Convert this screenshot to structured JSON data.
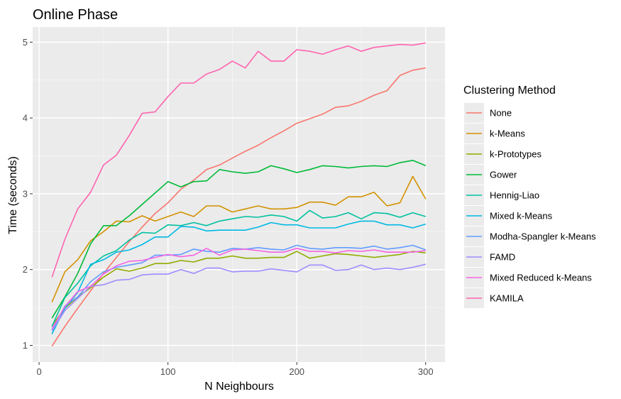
{
  "chart_data": {
    "type": "line",
    "title": "Online Phase",
    "xlabel": "N Neighbours",
    "ylabel": "Time (seconds)",
    "xlim": [
      -5,
      315
    ],
    "ylim": [
      0.78,
      5.2
    ],
    "xticks": [
      0,
      100,
      200,
      300
    ],
    "yticks": [
      1,
      2,
      3,
      4,
      5
    ],
    "grid": true,
    "legend": {
      "title": "Clustering Method",
      "position": "right"
    },
    "x": [
      10,
      20,
      30,
      40,
      50,
      60,
      70,
      80,
      90,
      100,
      110,
      120,
      130,
      140,
      150,
      160,
      170,
      180,
      190,
      200,
      210,
      220,
      230,
      240,
      250,
      260,
      270,
      280,
      290,
      300
    ],
    "series": [
      {
        "name": "None",
        "color": "#F8766D",
        "values": [
          0.99,
          1.25,
          1.49,
          1.72,
          1.95,
          2.16,
          2.37,
          2.56,
          2.74,
          2.88,
          3.06,
          3.18,
          3.32,
          3.38,
          3.47,
          3.56,
          3.64,
          3.74,
          3.83,
          3.93,
          3.99,
          4.05,
          4.14,
          4.16,
          4.22,
          4.3,
          4.36,
          4.56,
          4.63,
          4.66
        ]
      },
      {
        "name": "k-Means",
        "color": "#D39200",
        "values": [
          1.57,
          1.97,
          2.13,
          2.38,
          2.5,
          2.64,
          2.63,
          2.71,
          2.64,
          2.7,
          2.76,
          2.7,
          2.84,
          2.84,
          2.76,
          2.8,
          2.84,
          2.8,
          2.8,
          2.82,
          2.89,
          2.89,
          2.85,
          2.96,
          2.96,
          3.02,
          2.84,
          2.88,
          3.23,
          2.93
        ]
      },
      {
        "name": "k-Prototypes",
        "color": "#93AA00",
        "values": [
          1.26,
          1.49,
          1.64,
          1.76,
          1.9,
          2.01,
          1.98,
          2.02,
          2.08,
          2.08,
          2.12,
          2.1,
          2.15,
          2.15,
          2.18,
          2.15,
          2.15,
          2.16,
          2.16,
          2.24,
          2.15,
          2.18,
          2.21,
          2.2,
          2.18,
          2.16,
          2.18,
          2.2,
          2.24,
          2.22
        ]
      },
      {
        "name": "Gower",
        "color": "#00BA38",
        "values": [
          1.36,
          1.64,
          1.95,
          2.34,
          2.58,
          2.58,
          2.71,
          2.86,
          3.01,
          3.16,
          3.09,
          3.16,
          3.17,
          3.32,
          3.29,
          3.27,
          3.29,
          3.37,
          3.33,
          3.28,
          3.32,
          3.37,
          3.36,
          3.34,
          3.36,
          3.37,
          3.36,
          3.41,
          3.44,
          3.37
        ]
      },
      {
        "name": "Hennig-Liao",
        "color": "#00C19F",
        "values": [
          1.25,
          1.63,
          1.82,
          2.05,
          2.18,
          2.25,
          2.39,
          2.49,
          2.48,
          2.59,
          2.58,
          2.62,
          2.58,
          2.64,
          2.67,
          2.7,
          2.69,
          2.72,
          2.7,
          2.64,
          2.78,
          2.68,
          2.7,
          2.75,
          2.67,
          2.75,
          2.74,
          2.69,
          2.75,
          2.7
        ]
      },
      {
        "name": "Mixed k-Means",
        "color": "#00B9E3",
        "values": [
          1.15,
          1.49,
          1.7,
          2.07,
          2.13,
          2.23,
          2.26,
          2.33,
          2.43,
          2.43,
          2.57,
          2.56,
          2.51,
          2.52,
          2.52,
          2.52,
          2.56,
          2.62,
          2.59,
          2.59,
          2.55,
          2.55,
          2.55,
          2.6,
          2.64,
          2.64,
          2.59,
          2.59,
          2.55,
          2.6
        ]
      },
      {
        "name": "Modha-Spangler k-Means",
        "color": "#619CFF",
        "values": [
          1.2,
          1.52,
          1.64,
          1.84,
          1.97,
          2.03,
          2.06,
          2.09,
          2.19,
          2.19,
          2.2,
          2.27,
          2.24,
          2.23,
          2.28,
          2.27,
          2.29,
          2.27,
          2.26,
          2.32,
          2.28,
          2.27,
          2.29,
          2.29,
          2.28,
          2.31,
          2.27,
          2.29,
          2.32,
          2.26
        ]
      },
      {
        "name": "FAMD",
        "color": "#9F8CFF",
        "values": [
          1.19,
          1.46,
          1.62,
          1.78,
          1.8,
          1.86,
          1.87,
          1.93,
          1.94,
          1.94,
          2.0,
          1.95,
          2.02,
          2.02,
          1.97,
          1.98,
          1.98,
          2.01,
          1.99,
          1.97,
          2.06,
          2.06,
          1.99,
          2.0,
          2.06,
          2.0,
          2.02,
          2.0,
          2.03,
          2.07
        ]
      },
      {
        "name": "Mixed Reduced k-Means",
        "color": "#F564E3",
        "values": [
          1.22,
          1.51,
          1.71,
          1.78,
          1.94,
          2.05,
          2.11,
          2.12,
          2.16,
          2.2,
          2.17,
          2.19,
          2.28,
          2.19,
          2.26,
          2.27,
          2.25,
          2.23,
          2.23,
          2.28,
          2.24,
          2.24,
          2.22,
          2.25,
          2.24,
          2.26,
          2.23,
          2.23,
          2.23,
          2.25
        ]
      },
      {
        "name": "KAMILA",
        "color": "#FF64B0",
        "values": [
          1.9,
          2.4,
          2.8,
          3.02,
          3.38,
          3.51,
          3.77,
          4.06,
          4.08,
          4.28,
          4.46,
          4.46,
          4.58,
          4.64,
          4.75,
          4.66,
          4.88,
          4.75,
          4.75,
          4.9,
          4.88,
          4.84,
          4.9,
          4.95,
          4.88,
          4.93,
          4.95,
          4.97,
          4.96,
          4.99
        ]
      }
    ]
  }
}
